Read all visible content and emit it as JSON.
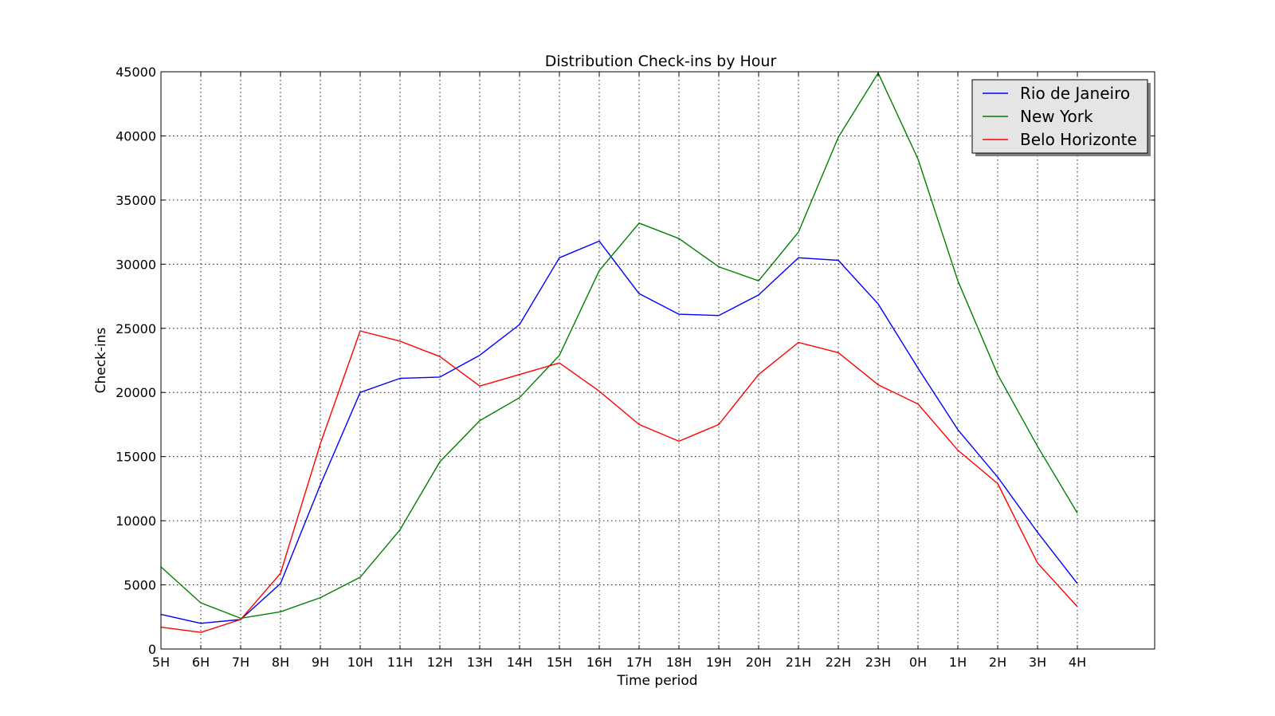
{
  "chart_data": {
    "type": "line",
    "title": "Distribution Check-ins by Hour",
    "xlabel": "Time period",
    "ylabel": "Check-ins",
    "categories": [
      "5H",
      "6H",
      "7H",
      "8H",
      "9H",
      "10H",
      "11H",
      "12H",
      "13H",
      "14H",
      "15H",
      "16H",
      "17H",
      "18H",
      "19H",
      "20H",
      "21H",
      "22H",
      "23H",
      "0H",
      "1H",
      "2H",
      "3H",
      "4H"
    ],
    "ylim": [
      0,
      45000
    ],
    "yticks": [
      0,
      5000,
      10000,
      15000,
      20000,
      25000,
      30000,
      35000,
      40000,
      45000
    ],
    "grid": true,
    "legend_position": "top-right",
    "series": [
      {
        "name": "Rio de Janeiro",
        "color": "#0000ff",
        "values": [
          2700,
          2000,
          2300,
          5100,
          12800,
          20000,
          21100,
          21200,
          22900,
          25300,
          30500,
          31800,
          27700,
          26100,
          26000,
          27600,
          30500,
          30300,
          26900,
          21900,
          17100,
          13400,
          9100,
          5100
        ]
      },
      {
        "name": "New York",
        "color": "#008000",
        "values": [
          6400,
          3600,
          2400,
          2900,
          4000,
          5600,
          9300,
          14600,
          17800,
          19600,
          22900,
          29500,
          33200,
          32000,
          29800,
          28700,
          32500,
          39900,
          44900,
          38200,
          28700,
          21400,
          15800,
          10600
        ]
      },
      {
        "name": "Belo Horizonte",
        "color": "#ff0000",
        "values": [
          1700,
          1300,
          2300,
          5900,
          16000,
          24800,
          24000,
          22800,
          20500,
          21400,
          22300,
          20100,
          17500,
          16200,
          17500,
          21400,
          23900,
          23100,
          20600,
          19100,
          15500,
          12900,
          6700,
          3300
        ]
      }
    ]
  }
}
